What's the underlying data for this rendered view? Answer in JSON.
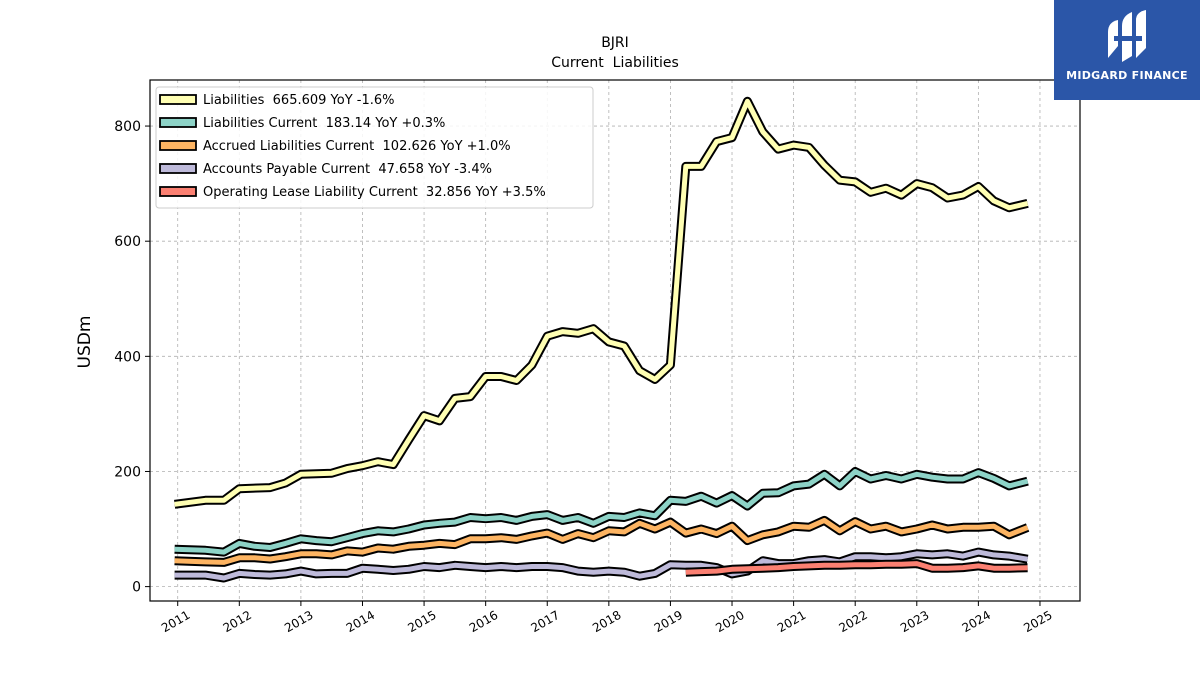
{
  "chart_data": {
    "type": "line",
    "title": "BJRI",
    "subtitle": "Current  Liabilities",
    "ylabel": "USDm",
    "xlabel": "",
    "ylim": [
      -25,
      880
    ],
    "xlim": [
      2010.55,
      2025.65
    ],
    "yticks": [
      0,
      200,
      400,
      600,
      800
    ],
    "xticks": [
      "2011",
      "2012",
      "2013",
      "2014",
      "2015",
      "2016",
      "2017",
      "2018",
      "2019",
      "2020",
      "2021",
      "2022",
      "2023",
      "2024",
      "2025"
    ],
    "grid": true,
    "legend_position": "top-left",
    "series": [
      {
        "name": "Liabilities  665.609 YoY -1.6%",
        "color": "#ffffb3",
        "x": [
          2010.95,
          2011.45,
          2011.75,
          2012.0,
          2012.5,
          2012.75,
          2013.0,
          2013.5,
          2013.75,
          2014.0,
          2014.25,
          2014.5,
          2014.75,
          2015.0,
          2015.25,
          2015.5,
          2015.75,
          2016.0,
          2016.25,
          2016.5,
          2016.75,
          2017.0,
          2017.25,
          2017.5,
          2017.75,
          2018.0,
          2018.25,
          2018.5,
          2018.75,
          2019.0,
          2019.25,
          2019.5,
          2019.75,
          2020.0,
          2020.25,
          2020.5,
          2020.75,
          2021.0,
          2021.25,
          2021.5,
          2021.75,
          2022.0,
          2022.25,
          2022.5,
          2022.75,
          2023.0,
          2023.25,
          2023.5,
          2023.75,
          2024.0,
          2024.25,
          2024.5,
          2024.8
        ],
        "y": [
          143,
          150,
          150,
          170,
          172,
          180,
          195,
          197,
          205,
          210,
          217,
          212,
          255,
          297,
          288,
          327,
          330,
          365,
          365,
          358,
          385,
          435,
          443,
          440,
          448,
          425,
          418,
          375,
          360,
          385,
          730,
          730,
          773,
          780,
          843,
          790,
          760,
          767,
          763,
          732,
          706,
          703,
          685,
          692,
          680,
          700,
          693,
          675,
          680,
          695,
          670,
          658,
          665.609
        ]
      },
      {
        "name": "Liabilities Current  183.14 YoY +0.3%",
        "color": "#8dd3c7",
        "x": [
          2010.95,
          2011.45,
          2011.75,
          2012.0,
          2012.25,
          2012.5,
          2012.75,
          2013.0,
          2013.25,
          2013.5,
          2013.75,
          2014.0,
          2014.25,
          2014.5,
          2014.75,
          2015.0,
          2015.25,
          2015.5,
          2015.75,
          2016.0,
          2016.25,
          2016.5,
          2016.75,
          2017.0,
          2017.25,
          2017.5,
          2017.75,
          2018.0,
          2018.25,
          2018.5,
          2018.75,
          2019.0,
          2019.25,
          2019.5,
          2019.75,
          2020.0,
          2020.25,
          2020.5,
          2020.75,
          2021.0,
          2021.25,
          2021.5,
          2021.75,
          2022.0,
          2022.25,
          2022.5,
          2022.75,
          2023.0,
          2023.25,
          2023.5,
          2023.75,
          2024.0,
          2024.25,
          2024.5,
          2024.8
        ],
        "y": [
          65,
          63,
          60,
          75,
          70,
          68,
          75,
          83,
          80,
          78,
          85,
          92,
          97,
          95,
          100,
          107,
          110,
          112,
          120,
          118,
          120,
          115,
          122,
          125,
          115,
          120,
          110,
          122,
          120,
          128,
          123,
          150,
          148,
          157,
          145,
          158,
          140,
          162,
          163,
          175,
          178,
          195,
          175,
          200,
          187,
          193,
          187,
          195,
          190,
          187,
          187,
          198,
          188,
          175,
          183.14
        ]
      },
      {
        "name": "Accrued Liabilities Current  102.626 YoY +1.0%",
        "color": "#fdb462",
        "x": [
          2010.95,
          2011.45,
          2011.75,
          2012.0,
          2012.25,
          2012.5,
          2012.75,
          2013.0,
          2013.25,
          2013.5,
          2013.75,
          2014.0,
          2014.25,
          2014.5,
          2014.75,
          2015.0,
          2015.25,
          2015.5,
          2015.75,
          2016.0,
          2016.25,
          2016.5,
          2016.75,
          2017.0,
          2017.25,
          2017.5,
          2017.75,
          2018.0,
          2018.25,
          2018.5,
          2018.75,
          2019.0,
          2019.25,
          2019.5,
          2019.75,
          2020.0,
          2020.25,
          2020.5,
          2020.75,
          2021.0,
          2021.25,
          2021.5,
          2021.75,
          2022.0,
          2022.25,
          2022.5,
          2022.75,
          2023.0,
          2023.25,
          2023.5,
          2023.75,
          2024.0,
          2024.25,
          2024.5,
          2024.8
        ],
        "y": [
          45,
          43,
          42,
          50,
          50,
          48,
          52,
          57,
          57,
          55,
          62,
          60,
          67,
          65,
          70,
          72,
          75,
          73,
          83,
          83,
          85,
          82,
          88,
          93,
          82,
          92,
          85,
          97,
          95,
          110,
          100,
          112,
          93,
          100,
          92,
          105,
          80,
          90,
          95,
          105,
          103,
          115,
          97,
          113,
          100,
          105,
          95,
          100,
          107,
          100,
          103,
          103,
          105,
          90,
          102.626
        ]
      },
      {
        "name": "Accounts Payable Current  47.658 YoY -3.4%",
        "color": "#bebada",
        "x": [
          2010.95,
          2011.45,
          2011.75,
          2012.0,
          2012.25,
          2012.5,
          2012.75,
          2013.0,
          2013.25,
          2013.5,
          2013.75,
          2014.0,
          2014.25,
          2014.5,
          2014.75,
          2015.0,
          2015.25,
          2015.5,
          2015.75,
          2016.0,
          2016.25,
          2016.5,
          2016.75,
          2017.0,
          2017.25,
          2017.5,
          2017.75,
          2018.0,
          2018.25,
          2018.5,
          2018.75,
          2019.0,
          2019.25,
          2019.5,
          2019.75,
          2020.0,
          2020.25,
          2020.5,
          2020.75,
          2021.0,
          2021.25,
          2021.5,
          2021.75,
          2022.0,
          2022.25,
          2022.5,
          2022.75,
          2023.0,
          2023.25,
          2023.5,
          2023.75,
          2024.0,
          2024.25,
          2024.5,
          2024.8
        ],
        "y": [
          20,
          20,
          15,
          23,
          21,
          20,
          22,
          27,
          22,
          23,
          23,
          32,
          30,
          28,
          30,
          35,
          33,
          37,
          35,
          33,
          35,
          33,
          35,
          35,
          33,
          27,
          25,
          27,
          25,
          18,
          23,
          38,
          37,
          37,
          33,
          22,
          27,
          45,
          40,
          40,
          45,
          47,
          43,
          52,
          52,
          50,
          52,
          57,
          55,
          57,
          53,
          60,
          55,
          53,
          47.658
        ]
      },
      {
        "name": "Operating Lease Liability Current  32.856 YoY +3.5%",
        "color": "#fb8072",
        "x": [
          2019.25,
          2019.5,
          2019.75,
          2020.0,
          2020.25,
          2020.5,
          2020.75,
          2021.0,
          2021.25,
          2021.5,
          2021.75,
          2022.0,
          2022.25,
          2022.5,
          2022.75,
          2023.0,
          2023.25,
          2023.5,
          2023.75,
          2024.0,
          2024.25,
          2024.5,
          2024.8
        ],
        "y": [
          25,
          26,
          27,
          30,
          31,
          32,
          33,
          35,
          36,
          37,
          37,
          38,
          38,
          39,
          39,
          40,
          32,
          32,
          33,
          36,
          32,
          32,
          32.856
        ]
      }
    ]
  },
  "brand": {
    "name": "MIDGARD FINANCE",
    "background": "#2b56a8"
  }
}
